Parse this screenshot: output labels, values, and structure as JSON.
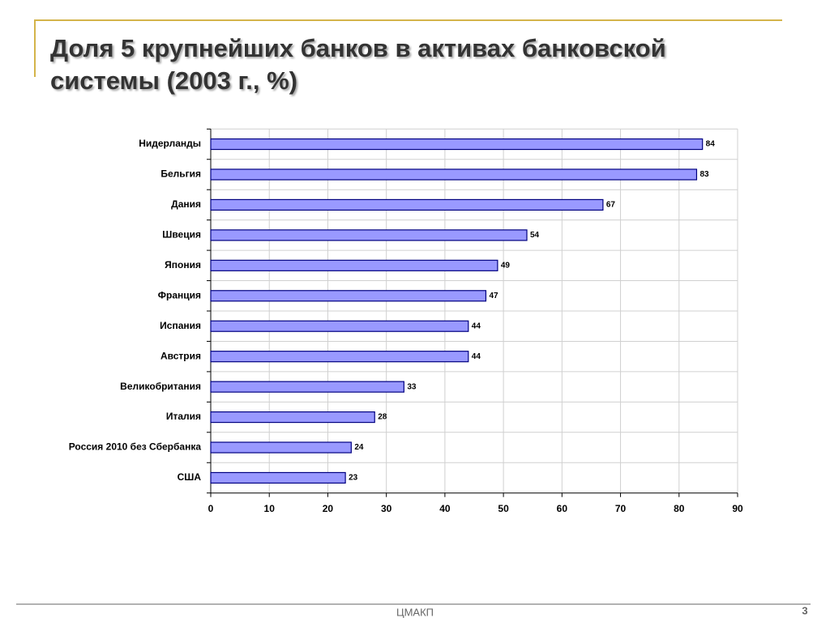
{
  "chart_data": {
    "type": "bar",
    "orientation": "horizontal",
    "title": "Доля 5 крупнейших банков в активах банковской системы (2003 г., %)",
    "categories": [
      "Нидерланды",
      "Бельгия",
      "Дания",
      "Швеция",
      "Япония",
      "Франция",
      "Испания",
      "Австрия",
      "Великобритания",
      "Италия",
      "Россия 2010 без Сбербанка",
      "США"
    ],
    "values": [
      84,
      83,
      67,
      54,
      49,
      47,
      44,
      44,
      33,
      28,
      24,
      23
    ],
    "color": "#9999ff",
    "xlim": [
      0,
      90
    ],
    "xticks": [
      0,
      10,
      20,
      30,
      40,
      50,
      60,
      70,
      80,
      90
    ],
    "grid": true
  },
  "footer": {
    "text": "ЦМАКП",
    "page_number": "3"
  }
}
